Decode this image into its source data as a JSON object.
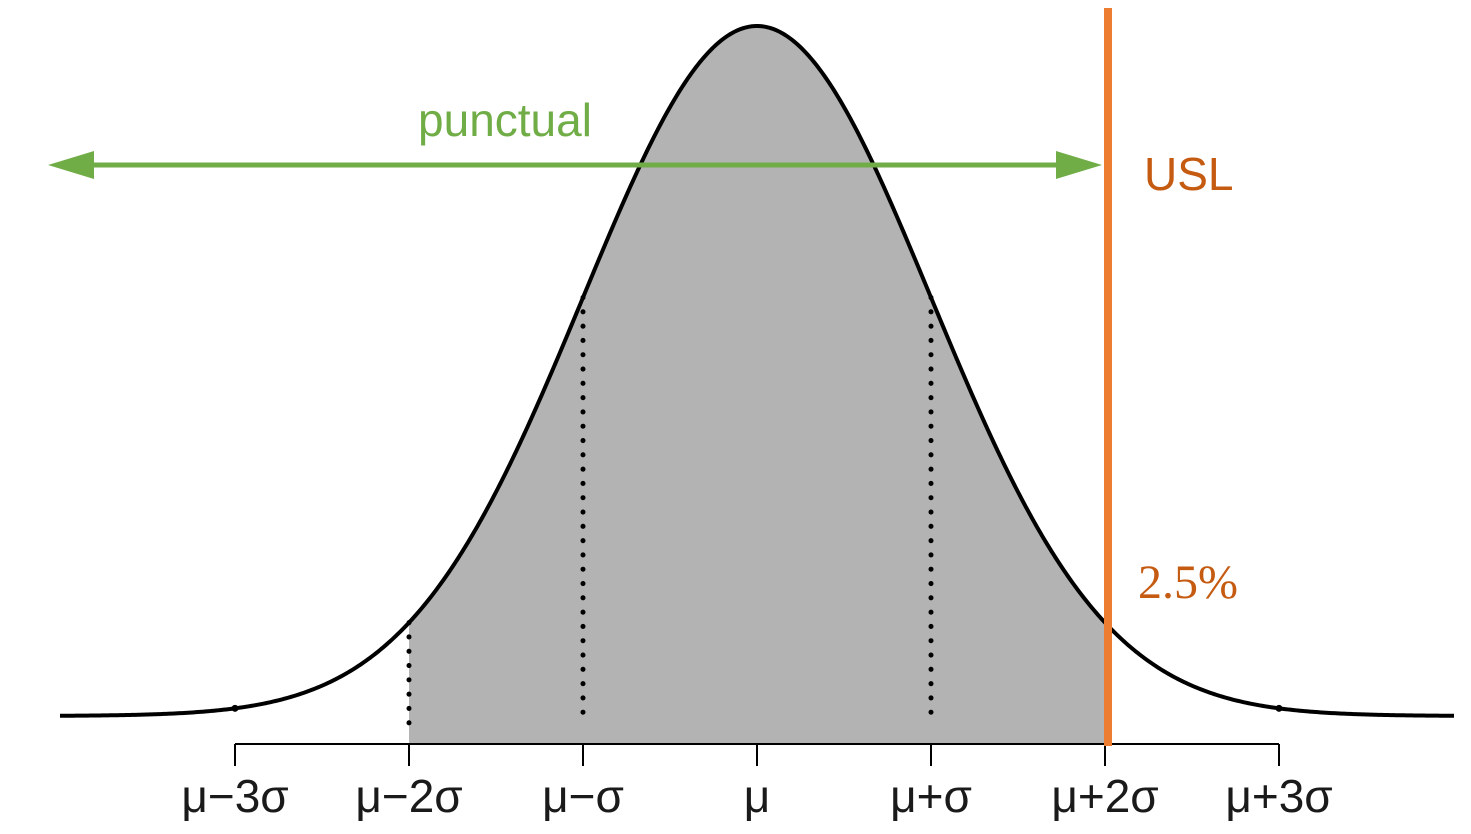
{
  "chart_data": {
    "type": "area",
    "distribution": "normal",
    "mean": 0,
    "sd": 1,
    "x_range": [
      -4,
      4
    ],
    "x_ticks": [
      -3,
      -2,
      -1,
      0,
      1,
      2,
      3
    ],
    "tick_labels": [
      "μ−3σ",
      "μ−2σ",
      "μ−σ",
      "μ",
      "μ+σ",
      "μ+2σ",
      "μ+3σ"
    ],
    "shaded_region": [
      -2,
      2
    ],
    "dotted_sigma_lines": [
      -2,
      -1,
      1
    ],
    "tail_markers": [
      -3,
      3
    ],
    "usl": {
      "x": 2,
      "label": "USL",
      "tail_percent": "2.5%"
    },
    "punctual": {
      "label": "punctual",
      "from": "-inf",
      "to": 2
    },
    "grid": false,
    "legend": "none"
  },
  "colors": {
    "curve": "#000000",
    "fill": "#b3b3b3",
    "usl": "#ed7d31",
    "usl_text": "#c55a11",
    "punctual": "#70ad47",
    "axis": "#000000"
  }
}
